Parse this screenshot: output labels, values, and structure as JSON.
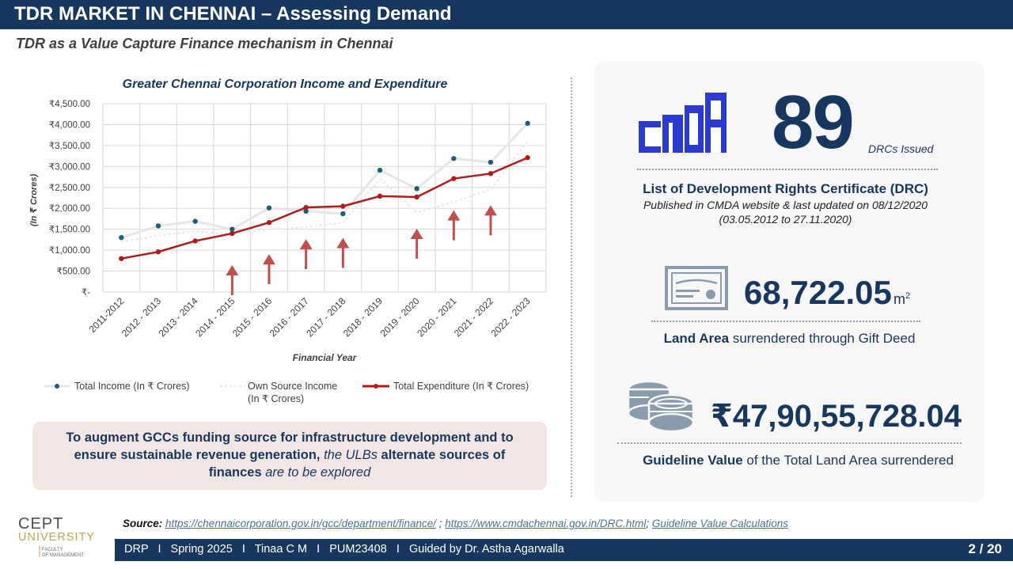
{
  "header": {
    "title": "TDR MARKET IN CHENNAI – Assessing Demand",
    "subtitle": "TDR as a Value Capture Finance mechanism in Chennai"
  },
  "chart_data": {
    "type": "line",
    "title": "Greater Chennai Corporation Income and Expenditure",
    "xlabel": "Financial Year",
    "ylabel": "(In ₹ Crores)",
    "ylim": [
      0,
      4500
    ],
    "yticks": [
      "₹-",
      "₹500.00",
      "₹1,000.00",
      "₹1,500.00",
      "₹2,000.00",
      "₹2,500.00",
      "₹3,000.00",
      "₹3,500.00",
      "₹4,000.00",
      "₹4,500.00"
    ],
    "categories": [
      "2011-2012",
      "2012 - 2013",
      "2013 - 2014",
      "2014 - 2015",
      "2015 - 2016",
      "2016 - 2017",
      "2017 - 2018",
      "2018 - 2019",
      "2019 - 2020",
      "2020 - 2021",
      "2021 - 2022",
      "2022 - 2023"
    ],
    "series": [
      {
        "name": "Total Income (In ₹ Crores)",
        "color": "#1f5f7a",
        "values": [
          1300,
          1580,
          1690,
          1500,
          2010,
          1930,
          1870,
          2910,
          2470,
          3190,
          3100,
          4030
        ]
      },
      {
        "name": "Own Source Income (In ₹ Crores)",
        "color": "#e8e8e8",
        "values": [
          1200,
          1350,
          1450,
          1380,
          1500,
          1550,
          1650,
          2700,
          1900,
          2150,
          2450,
          3600
        ]
      },
      {
        "name": "Total Expenditure (In ₹ Crores)",
        "color": "#b01c1c",
        "values": [
          800,
          960,
          1220,
          1400,
          1660,
          2020,
          2050,
          2290,
          2270,
          2710,
          2830,
          3210
        ]
      }
    ],
    "legend_labels": {
      "total_income": "Total Income (In ₹ Crores)",
      "own_source_line1": "Own Source Income",
      "own_source_line2": "(In ₹ Crores)",
      "total_expenditure": "Total Expenditure (In ₹ Crores)"
    },
    "arrows_at_categories": [
      3,
      4,
      5,
      6,
      8,
      9,
      10
    ],
    "grid": true,
    "legend_position": "bottom"
  },
  "callout": {
    "part1": "To augment GCCs funding source for infrastructure development and to ensure sustainable revenue generation, ",
    "part2": "the ULBs ",
    "part3": "alternate sources of finances ",
    "part4": "are to be explored"
  },
  "stats": {
    "drc_count": "89",
    "drc_label": "DRCs Issued",
    "drc_title": "List of Development Rights Certificate (DRC)",
    "drc_sub1": "Published in CMDA website & last updated on 08/12/2020",
    "drc_sub2": "(03.05.2012 to 27.11.2020)",
    "area_value": "68,722.05",
    "area_unit": "m",
    "area_unit_sup": "2",
    "area_caption_bold": "Land Area",
    "area_caption_rest": " surrendered through Gift Deed",
    "value_amount": "₹47,90,55,728.04",
    "value_caption_bold": "Guideline Value",
    "value_caption_rest": " of the Total Land Area surrendered"
  },
  "logos": {
    "cmda_text": "CMDA",
    "cept_line1": "CEPT",
    "cept_line2": "UNIVERSITY",
    "cept_line3": "FACULTY",
    "cept_line4": "OF MANAGEMENT"
  },
  "source": {
    "label": "Source:",
    "link1": "https://chennaicorporation.gov.in/gcc/department/finance/",
    "sep1": " ; ",
    "link2": "https://www.cmdachennai.gov.in/DRC.html",
    "sep2": "; ",
    "link3": "Guideline Value Calculations"
  },
  "footer": {
    "text": "DRP   I   Spring 2025   I   Tinaa C M   I   PUM23408   I   Guided by Dr. Astha Agarwalla",
    "page": "2 / 20"
  },
  "colors": {
    "navy": "#17375e",
    "expenditure": "#b01c1c",
    "income_dot": "#1f5f7a",
    "arrow": "#c0504d",
    "callout_bg": "#f2e6e4",
    "cmda_blue": "#2b3bd1"
  }
}
